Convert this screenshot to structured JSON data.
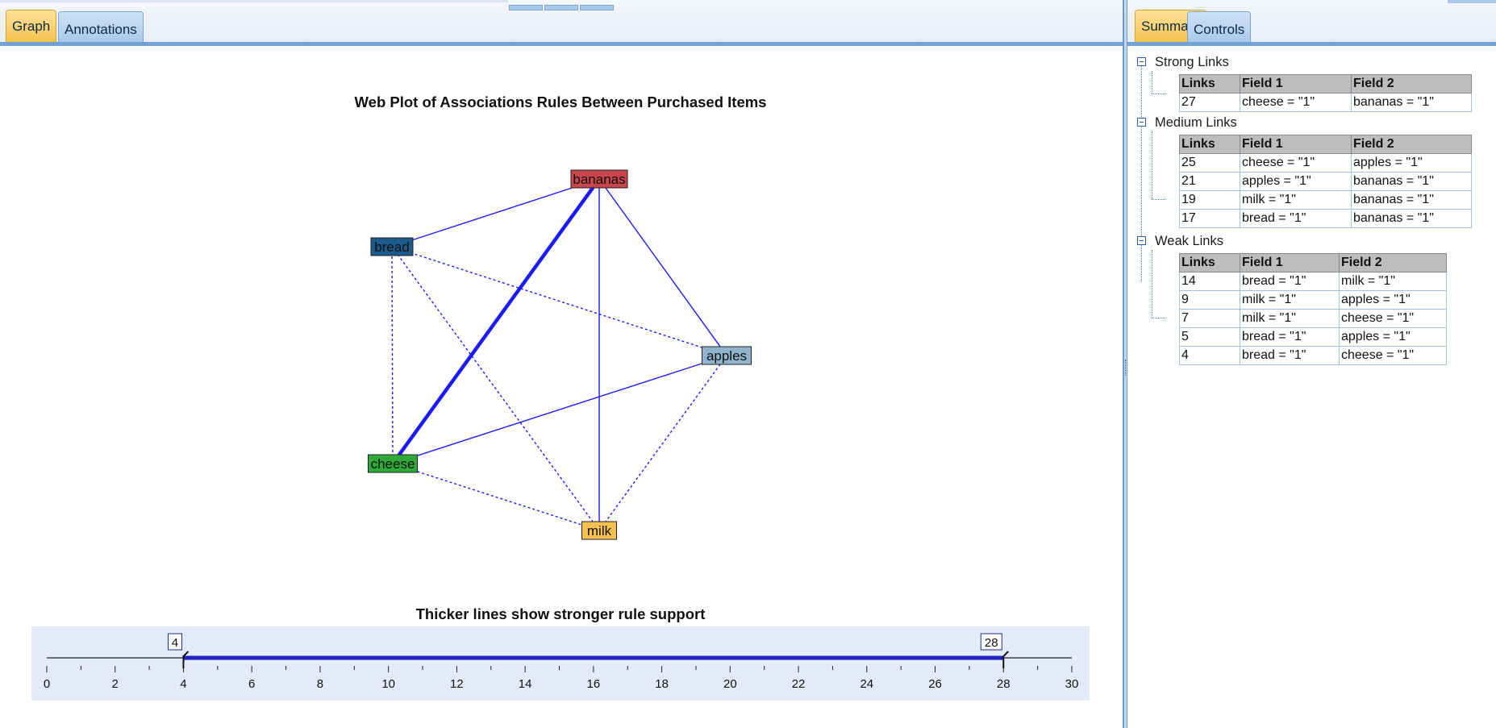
{
  "left_tabs": [
    "Graph",
    "Annotations"
  ],
  "right_tabs": [
    "Summary",
    "Controls"
  ],
  "chart_data": {
    "type": "web",
    "title": "Web Plot of Associations Rules Between Purchased Items",
    "nodes": [
      {
        "name": "bananas",
        "color": "#c9454b"
      },
      {
        "name": "bread",
        "color": "#1c5a8c"
      },
      {
        "name": "apples",
        "color": "#8fb4cc"
      },
      {
        "name": "cheese",
        "color": "#2faa3a"
      },
      {
        "name": "milk",
        "color": "#f6c14f"
      }
    ],
    "links": [
      {
        "from": "cheese",
        "to": "bananas",
        "value": 27,
        "strength": "strong"
      },
      {
        "from": "cheese",
        "to": "apples",
        "value": 25,
        "strength": "medium"
      },
      {
        "from": "apples",
        "to": "bananas",
        "value": 21,
        "strength": "medium"
      },
      {
        "from": "milk",
        "to": "bananas",
        "value": 19,
        "strength": "medium"
      },
      {
        "from": "bread",
        "to": "bananas",
        "value": 17,
        "strength": "medium"
      },
      {
        "from": "bread",
        "to": "milk",
        "value": 14,
        "strength": "weak"
      },
      {
        "from": "milk",
        "to": "apples",
        "value": 9,
        "strength": "weak"
      },
      {
        "from": "milk",
        "to": "cheese",
        "value": 7,
        "strength": "weak"
      },
      {
        "from": "bread",
        "to": "apples",
        "value": 5,
        "strength": "weak"
      },
      {
        "from": "bread",
        "to": "cheese",
        "value": 4,
        "strength": "weak"
      }
    ],
    "subtitle": "Thicker lines show stronger rule support",
    "slider": {
      "min": 0,
      "max": 30,
      "ticks": [
        "0",
        "2",
        "4",
        "6",
        "8",
        "10",
        "12",
        "14",
        "16",
        "18",
        "20",
        "22",
        "24",
        "26",
        "28",
        "30"
      ],
      "low_value": 4,
      "high_value": 28,
      "low_label": "4",
      "high_label": "28"
    },
    "colors": {
      "line": "#1a1aff",
      "slider_bg": "#e2ecf8"
    }
  },
  "summary": {
    "columns": [
      "Links",
      "Field 1",
      "Field 2"
    ],
    "groups": [
      {
        "title": "Strong Links",
        "rows": [
          [
            "27",
            "cheese = \"1\"",
            "bananas = \"1\""
          ]
        ]
      },
      {
        "title": "Medium Links",
        "rows": [
          [
            "25",
            "cheese = \"1\"",
            "apples = \"1\""
          ],
          [
            "21",
            "apples = \"1\"",
            "bananas = \"1\""
          ],
          [
            "19",
            "milk = \"1\"",
            "bananas = \"1\""
          ],
          [
            "17",
            "bread = \"1\"",
            "bananas = \"1\""
          ]
        ]
      },
      {
        "title": "Weak Links",
        "rows": [
          [
            "14",
            "bread = \"1\"",
            "milk = \"1\""
          ],
          [
            "9",
            "milk = \"1\"",
            "apples = \"1\""
          ],
          [
            "7",
            "milk = \"1\"",
            "cheese = \"1\""
          ],
          [
            "5",
            "bread = \"1\"",
            "apples = \"1\""
          ],
          [
            "4",
            "bread = \"1\"",
            "cheese = \"1\""
          ]
        ]
      }
    ]
  }
}
